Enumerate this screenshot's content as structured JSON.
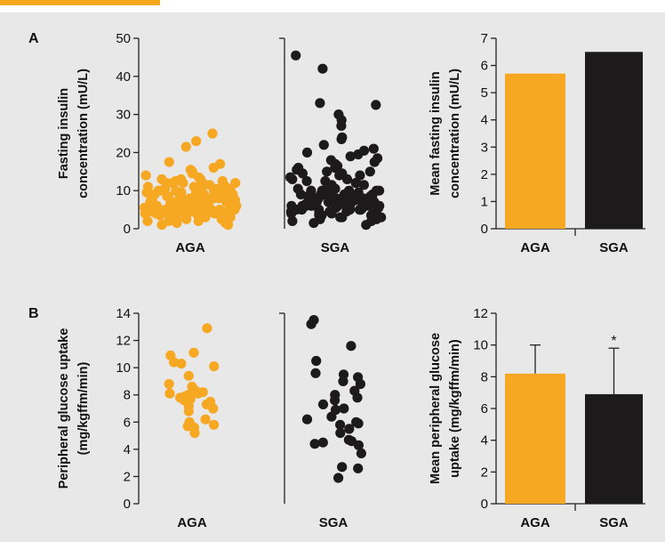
{
  "colors": {
    "aga": "#f7a823",
    "sga": "#1c1a1b",
    "axis": "#222222",
    "background": "#e8e8e8"
  },
  "panels": [
    {
      "letter": "A",
      "scatter_ylabel": [
        "Fasting insulin",
        "concentration (mU/L)"
      ],
      "bar_ylabel": [
        "Mean fasting insulin",
        "concentration (mU/L)"
      ],
      "scatter_ylim": [
        0,
        50
      ],
      "scatter_ticks": [
        0,
        10,
        20,
        30,
        40,
        50
      ],
      "bar_ylim": [
        0,
        7
      ],
      "bar_ticks": [
        0,
        1,
        2,
        3,
        4,
        5,
        6,
        7
      ]
    },
    {
      "letter": "B",
      "scatter_ylabel": [
        "Peripheral glucose uptake",
        "(mg/kgffm/min)"
      ],
      "bar_ylabel": [
        "Mean peripheral glucose",
        "uptake (mg/kgffm/min)"
      ],
      "scatter_ylim": [
        0,
        14
      ],
      "scatter_ticks": [
        0,
        2,
        4,
        6,
        8,
        10,
        12,
        14
      ],
      "bar_ylim": [
        0,
        12
      ],
      "bar_ticks": [
        0,
        2,
        4,
        6,
        8,
        10,
        12
      ]
    }
  ],
  "chart_data": [
    {
      "type": "scatter",
      "panel": "A",
      "ylabel": "Fasting insulin concentration (mU/L)",
      "ylim": [
        0,
        50
      ],
      "series": [
        {
          "name": "AGA",
          "values": [
            25,
            23,
            21.5,
            17.5,
            17,
            16,
            15.5,
            15,
            14.5,
            14,
            13.5,
            13,
            13,
            12.5,
            12.5,
            12,
            12,
            12,
            11.5,
            11.5,
            11,
            11,
            11,
            10.5,
            10.5,
            10.5,
            10,
            10,
            10,
            10,
            9.5,
            9.5,
            9.5,
            9,
            9,
            9,
            9,
            8.5,
            8.5,
            8.5,
            8.5,
            8,
            8,
            8,
            8,
            8,
            7.5,
            7.5,
            7.5,
            7.5,
            7.5,
            7,
            7,
            7,
            7,
            7,
            7,
            6.5,
            6.5,
            6.5,
            6.5,
            6.5,
            6,
            6,
            6,
            6,
            6,
            6,
            5.5,
            5.5,
            5.5,
            5.5,
            5.5,
            5,
            5,
            5,
            5,
            5,
            4.5,
            4.5,
            4.5,
            4.5,
            4,
            4,
            4,
            4,
            4,
            3.5,
            3.5,
            3.5,
            3.5,
            3,
            3,
            3,
            3,
            2.5,
            2.5,
            2.5,
            2,
            2,
            2,
            1.5,
            1.5,
            1,
            1,
            9,
            8,
            7,
            6,
            5,
            10,
            11,
            12,
            6.5,
            7.5,
            8.5,
            9.5,
            10.5,
            4.5,
            3.5,
            5.5,
            6,
            7,
            8,
            9,
            10,
            11,
            12,
            13,
            5,
            6,
            7,
            8,
            3,
            4
          ]
        },
        {
          "name": "SGA",
          "values": [
            45.5,
            42,
            33,
            32.5,
            30,
            28.5,
            27,
            24,
            23.5,
            22,
            21,
            20.5,
            20,
            19.5,
            19,
            18.5,
            18,
            17.5,
            17,
            16.5,
            16,
            16,
            15.5,
            15,
            15,
            14.5,
            14.5,
            14,
            14,
            13.5,
            13,
            13,
            12.5,
            12.5,
            12,
            12,
            11.5,
            11.5,
            11,
            11,
            11,
            10.5,
            10.5,
            10.5,
            10,
            10,
            10,
            10,
            9.5,
            9.5,
            9.5,
            9.5,
            9,
            9,
            9,
            9,
            9,
            8.5,
            8.5,
            8.5,
            8.5,
            8,
            8,
            8,
            8,
            8,
            7.5,
            7.5,
            7.5,
            7.5,
            7,
            7,
            7,
            7,
            7,
            6.5,
            6.5,
            6.5,
            6.5,
            6,
            6,
            6,
            6,
            6,
            5.5,
            5.5,
            5.5,
            5.5,
            5,
            5,
            5,
            5,
            5,
            4.5,
            4.5,
            4.5,
            4,
            4,
            4,
            4,
            3.5,
            3.5,
            3.5,
            3,
            3,
            3,
            2.5,
            2.5,
            2,
            2,
            1.5,
            1,
            9,
            8,
            7,
            6,
            5,
            10,
            8,
            7,
            6,
            5,
            4,
            3,
            9,
            8
          ]
        }
      ]
    },
    {
      "type": "bar",
      "panel": "A",
      "categories": [
        "AGA",
        "SGA"
      ],
      "values": [
        5.7,
        6.5
      ],
      "ylabel": "Mean fasting insulin concentration (mU/L)",
      "ylim": [
        0,
        7
      ]
    },
    {
      "type": "scatter",
      "panel": "B",
      "ylabel": "Peripheral glucose uptake (mg/kgffm/min)",
      "ylim": [
        0,
        14
      ],
      "series": [
        {
          "name": "AGA",
          "values": [
            12.9,
            11.1,
            10.9,
            10.4,
            10.3,
            10.1,
            9.4,
            8.8,
            8.6,
            8.3,
            8.2,
            8.1,
            8.1,
            8.0,
            7.9,
            7.8,
            7.7,
            7.6,
            7.5,
            7.3,
            7.2,
            7.0,
            6.8,
            6.2,
            6.0,
            5.8,
            5.7,
            5.6,
            5.2
          ]
        },
        {
          "name": "SGA",
          "values": [
            13.5,
            13.2,
            11.6,
            10.5,
            9.6,
            9.5,
            9.3,
            9.0,
            8.8,
            8.3,
            8.0,
            7.8,
            7.6,
            7.3,
            7.0,
            6.9,
            6.4,
            6.2,
            6.0,
            5.9,
            5.8,
            5.5,
            5.2,
            4.7,
            4.6,
            4.5,
            4.4,
            4.3,
            3.7,
            2.7,
            2.6,
            1.9
          ]
        }
      ]
    },
    {
      "type": "bar",
      "panel": "B",
      "categories": [
        "AGA",
        "SGA"
      ],
      "values": [
        8.2,
        6.9
      ],
      "error": [
        1.8,
        2.9
      ],
      "annotations": [
        "*"
      ],
      "ylabel": "Mean peripheral glucose uptake (mg/kgffm/min)",
      "ylim": [
        0,
        12
      ]
    }
  ]
}
